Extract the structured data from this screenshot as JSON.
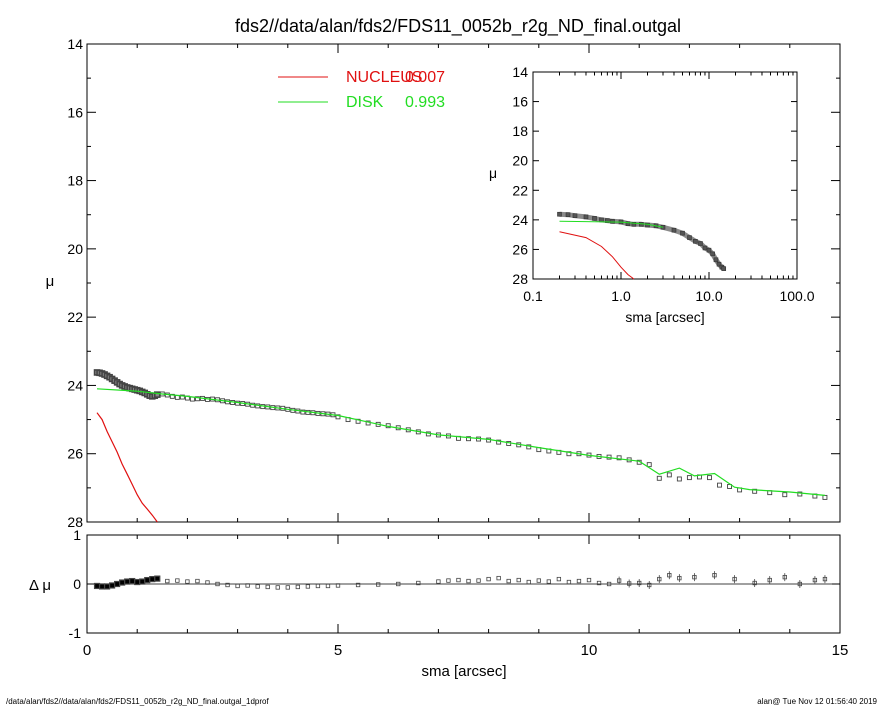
{
  "chart_data": [
    {
      "id": "main",
      "type": "scatter",
      "title": "fds2//data/alan/fds2/FDS11_0052b_r2g_ND_final.outgal",
      "xlabel": "sma [arcsec]",
      "ylabel": "μ",
      "xlim": [
        0,
        15
      ],
      "ylim": [
        28,
        14
      ],
      "y_inverted": true,
      "xticks": [
        0,
        5,
        10,
        15
      ],
      "yticks": [
        14,
        16,
        18,
        20,
        22,
        24,
        26,
        28
      ],
      "legend": {
        "placement": "top-center",
        "entries": [
          {
            "name": "NUCLEUS",
            "value": "0.007",
            "color": "#e01010"
          },
          {
            "name": "DISK",
            "value": "0.993",
            "color": "#22dd22"
          }
        ]
      },
      "series": [
        {
          "name": "data",
          "kind": "points",
          "color": "#555555",
          "x": [
            0.2,
            0.25,
            0.3,
            0.35,
            0.4,
            0.45,
            0.5,
            0.55,
            0.6,
            0.65,
            0.7,
            0.75,
            0.8,
            0.85,
            0.9,
            0.95,
            1.0,
            1.05,
            1.1,
            1.15,
            1.2,
            1.25,
            1.3,
            1.35,
            1.4,
            1.5,
            1.6,
            1.7,
            1.8,
            1.9,
            2.0,
            2.1,
            2.2,
            2.3,
            2.4,
            2.5,
            2.6,
            2.7,
            2.8,
            2.9,
            3.0,
            3.1,
            3.2,
            3.3,
            3.4,
            3.5,
            3.6,
            3.7,
            3.8,
            3.9,
            4.0,
            4.1,
            4.2,
            4.3,
            4.4,
            4.5,
            4.6,
            4.7,
            4.8,
            4.9,
            5.0,
            5.2,
            5.4,
            5.6,
            5.8,
            6.0,
            6.2,
            6.4,
            6.6,
            6.8,
            7.0,
            7.2,
            7.4,
            7.6,
            7.8,
            8.0,
            8.2,
            8.4,
            8.6,
            8.8,
            9.0,
            9.2,
            9.4,
            9.6,
            9.8,
            10.0,
            10.2,
            10.4,
            10.6,
            10.8,
            11.0,
            11.2,
            11.4,
            11.6,
            11.8,
            12.0,
            12.2,
            12.4,
            12.6,
            12.8,
            13.0,
            13.3,
            13.6,
            13.9,
            14.2,
            14.5,
            14.7
          ],
          "y": [
            23.62,
            23.63,
            23.65,
            23.68,
            23.72,
            23.76,
            23.81,
            23.86,
            23.91,
            23.96,
            24.0,
            24.03,
            24.06,
            24.08,
            24.1,
            24.12,
            24.14,
            24.16,
            24.19,
            24.22,
            24.26,
            24.3,
            24.32,
            24.3,
            24.27,
            24.25,
            24.28,
            24.32,
            24.35,
            24.34,
            24.37,
            24.4,
            24.39,
            24.38,
            24.41,
            24.4,
            24.42,
            24.45,
            24.48,
            24.5,
            24.52,
            24.53,
            24.55,
            24.58,
            24.6,
            24.62,
            24.63,
            24.65,
            24.66,
            24.67,
            24.7,
            24.73,
            24.75,
            24.78,
            24.79,
            24.8,
            24.82,
            24.83,
            24.84,
            24.86,
            24.92,
            25.0,
            25.05,
            25.1,
            25.14,
            25.18,
            25.24,
            25.3,
            25.36,
            25.42,
            25.45,
            25.48,
            25.55,
            25.56,
            25.57,
            25.6,
            25.66,
            25.7,
            25.74,
            25.8,
            25.88,
            25.92,
            25.96,
            26.0,
            26.0,
            26.04,
            26.08,
            26.1,
            26.12,
            26.18,
            26.25,
            26.32,
            26.72,
            26.62,
            26.74,
            26.7,
            26.68,
            26.7,
            26.92,
            26.96,
            27.06,
            27.1,
            27.14,
            27.2,
            27.18,
            27.24,
            27.28
          ]
        },
        {
          "name": "DISK",
          "kind": "line",
          "color": "#22dd22",
          "x": [
            0.2,
            1.0,
            1.5,
            2.0,
            3.0,
            4.0,
            5.0,
            6.0,
            7.0,
            8.0,
            9.0,
            10.0,
            11.0,
            11.4,
            11.8,
            12.1,
            12.5,
            12.9,
            13.2,
            14.0,
            14.7
          ],
          "y": [
            24.1,
            24.17,
            24.25,
            24.32,
            24.5,
            24.7,
            24.88,
            25.2,
            25.45,
            25.58,
            25.82,
            26.05,
            26.22,
            26.6,
            26.42,
            26.65,
            26.58,
            26.98,
            27.05,
            27.12,
            27.22
          ]
        },
        {
          "name": "NUCLEUS",
          "kind": "line",
          "color": "#e01010",
          "x": [
            0.2,
            0.3,
            0.4,
            0.5,
            0.6,
            0.7,
            0.8,
            0.9,
            1.0,
            1.1,
            1.2,
            1.3,
            1.4
          ],
          "y": [
            24.8,
            25.0,
            25.35,
            25.65,
            25.95,
            26.3,
            26.6,
            26.9,
            27.2,
            27.45,
            27.62,
            27.8,
            28.0
          ]
        }
      ]
    },
    {
      "id": "inset",
      "type": "scatter",
      "xlabel": "sma [arcsec]",
      "ylabel": "μ",
      "x_scale": "log",
      "xlim": [
        0.1,
        100
      ],
      "ylim": [
        28,
        14
      ],
      "y_inverted": true,
      "xtick_labels": [
        "0.1",
        "1.0",
        "10.0",
        "100.0"
      ],
      "xtick_values": [
        0.1,
        1,
        10,
        100
      ],
      "yticks": [
        14,
        16,
        18,
        20,
        22,
        24,
        26,
        28
      ],
      "series": [
        {
          "name": "data",
          "kind": "points",
          "color": "#555555",
          "x": [
            0.2,
            0.25,
            0.3,
            0.4,
            0.5,
            0.6,
            0.7,
            0.8,
            1.0,
            1.2,
            1.4,
            1.7,
            2.0,
            2.5,
            3.0,
            4.0,
            5.0,
            6.0,
            7.0,
            8.0,
            9.0,
            10.0,
            11.0,
            12.0,
            13.0,
            14.0,
            14.7
          ],
          "y": [
            23.62,
            23.65,
            23.72,
            23.8,
            23.9,
            24.0,
            24.05,
            24.1,
            24.14,
            24.26,
            24.3,
            24.3,
            24.35,
            24.4,
            24.5,
            24.7,
            24.9,
            25.2,
            25.45,
            25.6,
            25.9,
            26.05,
            26.3,
            26.7,
            27.0,
            27.2,
            27.3
          ]
        },
        {
          "name": "DISK",
          "kind": "line",
          "color": "#22dd22",
          "x": [
            0.2,
            1.0,
            2.0,
            3.0
          ],
          "y": [
            24.1,
            24.15,
            24.3,
            24.5
          ]
        },
        {
          "name": "NUCLEUS",
          "kind": "line",
          "color": "#e01010",
          "x": [
            0.2,
            0.4,
            0.6,
            0.8,
            1.0,
            1.2,
            1.4
          ],
          "y": [
            24.8,
            25.2,
            25.8,
            26.5,
            27.2,
            27.7,
            28.0
          ]
        }
      ]
    },
    {
      "id": "residual",
      "type": "scatter",
      "xlabel": "sma [arcsec]",
      "ylabel": "Δ μ",
      "xlim": [
        0,
        15
      ],
      "ylim": [
        -1,
        1
      ],
      "xticks": [
        0,
        5,
        10,
        15
      ],
      "yticks": [
        -1,
        0,
        1
      ],
      "series": [
        {
          "name": "residual",
          "kind": "points",
          "color": "#555555",
          "x": [
            0.2,
            0.3,
            0.4,
            0.5,
            0.6,
            0.7,
            0.8,
            0.9,
            1.0,
            1.1,
            1.2,
            1.3,
            1.4,
            1.6,
            1.8,
            2.0,
            2.2,
            2.4,
            2.6,
            2.8,
            3.0,
            3.2,
            3.4,
            3.6,
            3.8,
            4.0,
            4.2,
            4.4,
            4.6,
            4.8,
            5.0,
            5.4,
            5.8,
            6.2,
            6.6,
            7.0,
            7.2,
            7.4,
            7.6,
            7.8,
            8.0,
            8.2,
            8.4,
            8.6,
            8.8,
            9.0,
            9.2,
            9.4,
            9.6,
            9.8,
            10.0,
            10.2,
            10.4,
            10.6,
            10.8,
            11.0,
            11.2,
            11.4,
            11.6,
            11.8,
            12.1,
            12.5,
            12.9,
            13.3,
            13.6,
            13.9,
            14.2,
            14.5,
            14.7
          ],
          "y": [
            -0.04,
            -0.05,
            -0.05,
            -0.03,
            0.0,
            0.03,
            0.05,
            0.06,
            0.04,
            0.05,
            0.08,
            0.1,
            0.11,
            0.06,
            0.07,
            0.05,
            0.06,
            0.03,
            0.0,
            -0.02,
            -0.04,
            -0.03,
            -0.05,
            -0.06,
            -0.07,
            -0.07,
            -0.06,
            -0.05,
            -0.04,
            -0.04,
            -0.03,
            -0.02,
            -0.01,
            0.0,
            0.02,
            0.05,
            0.07,
            0.08,
            0.06,
            0.07,
            0.1,
            0.12,
            0.06,
            0.08,
            0.04,
            0.07,
            0.05,
            0.1,
            0.04,
            0.06,
            0.08,
            0.02,
            0.0,
            0.07,
            0.01,
            0.02,
            -0.02,
            0.1,
            0.18,
            0.12,
            0.14,
            0.18,
            0.1,
            0.02,
            0.08,
            0.14,
            0.0,
            0.08,
            0.1
          ]
        }
      ]
    }
  ],
  "footer": {
    "left": "/data/alan/fds2//data/alan/fds2/FDS11_0052b_r2g_ND_final.outgal_1dprof",
    "right": "alan@  Tue Nov 12 01:56:40 2019"
  }
}
